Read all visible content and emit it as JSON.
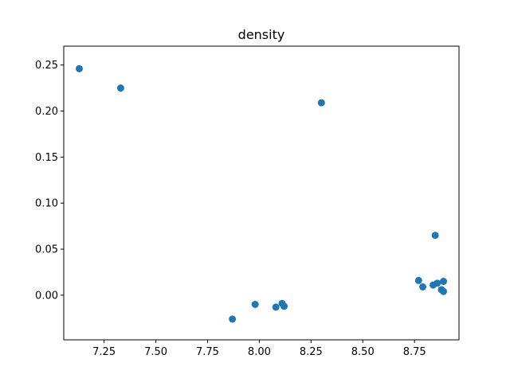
{
  "chart_data": {
    "type": "scatter",
    "title": "density",
    "xlabel": "",
    "ylabel": "",
    "xlim": [
      7.055,
      8.965
    ],
    "ylim": [
      -0.0485,
      0.2705
    ],
    "grid": false,
    "color": "#1f77b4",
    "x_ticks": [
      7.25,
      7.5,
      7.75,
      8.0,
      8.25,
      8.5,
      8.75
    ],
    "x_tick_labels": [
      "7.25",
      "7.50",
      "7.75",
      "8.00",
      "8.25",
      "8.50",
      "8.75"
    ],
    "y_ticks": [
      0.0,
      0.05,
      0.1,
      0.15,
      0.2,
      0.25
    ],
    "y_tick_labels": [
      "0.00",
      "0.05",
      "0.10",
      "0.15",
      "0.20",
      "0.25"
    ],
    "points": [
      {
        "x": 7.13,
        "y": 0.246
      },
      {
        "x": 7.33,
        "y": 0.225
      },
      {
        "x": 8.3,
        "y": 0.209
      },
      {
        "x": 7.87,
        "y": -0.026
      },
      {
        "x": 7.98,
        "y": -0.01
      },
      {
        "x": 8.08,
        "y": -0.013
      },
      {
        "x": 8.11,
        "y": -0.009
      },
      {
        "x": 8.12,
        "y": -0.012
      },
      {
        "x": 8.85,
        "y": 0.065
      },
      {
        "x": 8.77,
        "y": 0.016
      },
      {
        "x": 8.79,
        "y": 0.009
      },
      {
        "x": 8.84,
        "y": 0.011
      },
      {
        "x": 8.86,
        "y": 0.013
      },
      {
        "x": 8.88,
        "y": 0.006
      },
      {
        "x": 8.89,
        "y": 0.015
      },
      {
        "x": 8.89,
        "y": 0.004
      }
    ]
  }
}
